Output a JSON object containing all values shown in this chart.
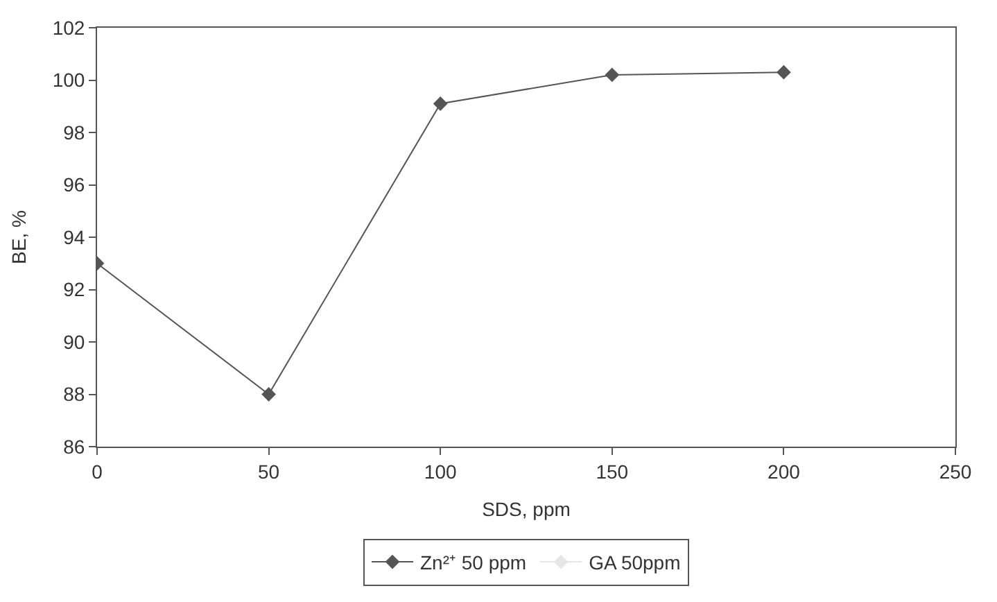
{
  "chart_data": {
    "type": "line",
    "xlabel": "SDS, ppm",
    "ylabel": "BE, %",
    "x": [
      0,
      50,
      100,
      150,
      200
    ],
    "series": [
      {
        "name": "Zn²⁺ 50 ppm",
        "color": "#555555",
        "values": [
          93,
          88,
          99.1,
          100.2,
          100.3
        ]
      },
      {
        "name": "GA 50ppm",
        "color": "#e6e6e6",
        "values": [
          null,
          null,
          null,
          null,
          null
        ]
      }
    ],
    "xlim": [
      0,
      250
    ],
    "xticks": [
      0,
      50,
      100,
      150,
      200,
      250
    ],
    "ylim": [
      86,
      102
    ],
    "yticks": [
      86,
      88,
      90,
      92,
      94,
      96,
      98,
      100,
      102
    ],
    "legend": "bottom",
    "marker": "diamond",
    "line_style": "solid"
  }
}
